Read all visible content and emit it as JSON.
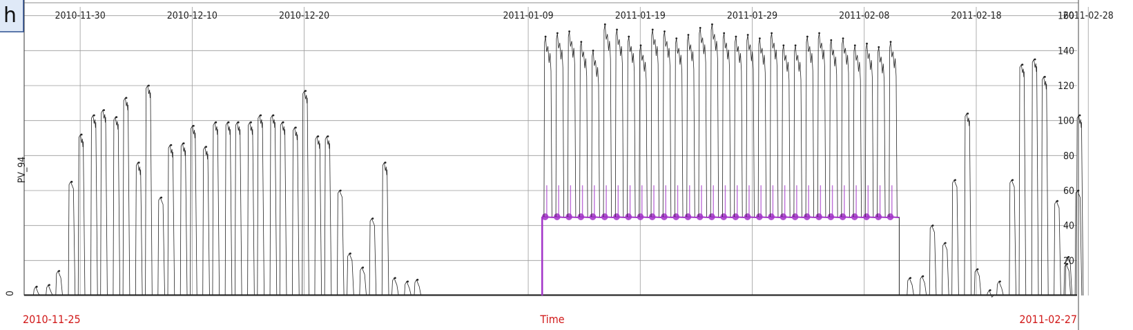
{
  "panel_letter": "h",
  "chart_data": {
    "type": "line",
    "title": "",
    "xlabel": "Time",
    "ylabel": "PV_94",
    "x_start_label": "2010-11-25",
    "x_end_label": "2011-02-27",
    "x_range": [
      "2010-11-25",
      "2011-02-27"
    ],
    "ylim": [
      0,
      165
    ],
    "y_ticks_right": [
      20,
      40,
      60,
      80,
      100,
      120,
      140,
      160
    ],
    "y_tick_left": "0",
    "x_ticks_top": [
      "2010-11-30",
      "2010-12-10",
      "2010-12-20",
      "2011-01-09",
      "2011-01-19",
      "2011-01-29",
      "2011-02-08",
      "2011-02-18",
      "2011-02-28"
    ],
    "grid": true,
    "colors": {
      "series": "#222222",
      "highlight": "#a233c8",
      "axis_label": "#d11a1a",
      "grid": "#9a9a9a"
    },
    "highlight_segment": {
      "start": "2011-01-10",
      "end": "2011-02-11",
      "baseline": 45
    },
    "series": [
      {
        "peaks": [
          {
            "date": "2010-11-26",
            "value": 5
          },
          {
            "date": "2010-11-27",
            "value": 6
          },
          {
            "date": "2010-11-28",
            "value": 14
          },
          {
            "date": "2010-11-29",
            "value": 65
          },
          {
            "date": "2010-11-30",
            "value": 92
          },
          {
            "date": "2010-12-01",
            "value": 103
          },
          {
            "date": "2010-12-02",
            "value": 106
          },
          {
            "date": "2010-12-03",
            "value": 102
          },
          {
            "date": "2010-12-04",
            "value": 113
          },
          {
            "date": "2010-12-05",
            "value": 76
          },
          {
            "date": "2010-12-06",
            "value": 120
          },
          {
            "date": "2010-12-07",
            "value": 56
          },
          {
            "date": "2010-12-08",
            "value": 86
          },
          {
            "date": "2010-12-09",
            "value": 87
          },
          {
            "date": "2010-12-10",
            "value": 97
          },
          {
            "date": "2010-12-11",
            "value": 85
          },
          {
            "date": "2010-12-12",
            "value": 99
          },
          {
            "date": "2010-12-13",
            "value": 99
          },
          {
            "date": "2010-12-14",
            "value": 99
          },
          {
            "date": "2010-12-15",
            "value": 99
          },
          {
            "date": "2010-12-16",
            "value": 103
          },
          {
            "date": "2010-12-17",
            "value": 103
          },
          {
            "date": "2010-12-18",
            "value": 99
          },
          {
            "date": "2010-12-19",
            "value": 96
          },
          {
            "date": "2010-12-20",
            "value": 117
          },
          {
            "date": "2010-12-21",
            "value": 91
          },
          {
            "date": "2010-12-22",
            "value": 91
          },
          {
            "date": "2010-12-23",
            "value": 60
          },
          {
            "date": "2010-12-24",
            "value": 24
          },
          {
            "date": "2010-12-25",
            "value": 16
          },
          {
            "date": "2010-12-26",
            "value": 44
          },
          {
            "date": "2010-12-27",
            "value": 76
          },
          {
            "date": "2010-12-28",
            "value": 10
          },
          {
            "date": "2010-12-29",
            "value": 8
          },
          {
            "date": "2010-12-30",
            "value": 9
          }
        ]
      },
      {
        "peaks": [
          {
            "date": "2011-02-12",
            "value": 10
          },
          {
            "date": "2011-02-13",
            "value": 11
          },
          {
            "date": "2011-02-14",
            "value": 40
          },
          {
            "date": "2011-02-15",
            "value": 30
          },
          {
            "date": "2011-02-16",
            "value": 66
          },
          {
            "date": "2011-02-17",
            "value": 104
          },
          {
            "date": "2011-02-18",
            "value": 15
          },
          {
            "date": "2011-02-19",
            "value": 3
          },
          {
            "date": "2011-02-20",
            "value": 8
          },
          {
            "date": "2011-02-21",
            "value": 66
          },
          {
            "date": "2011-02-22",
            "value": 132
          },
          {
            "date": "2011-02-23",
            "value": 135
          },
          {
            "date": "2011-02-24",
            "value": 125
          },
          {
            "date": "2011-02-25",
            "value": 54
          },
          {
            "date": "2011-02-26",
            "value": 18
          },
          {
            "date": "2011-02-26",
            "value": 22
          },
          {
            "date": "2011-02-27",
            "value": 60
          },
          {
            "date": "2011-02-27",
            "value": 103
          }
        ]
      }
    ],
    "high_cycles": {
      "start": "2011-01-10",
      "end": "2011-02-11",
      "peak_values": [
        148,
        150,
        151,
        145,
        140,
        155,
        152,
        148,
        143,
        152,
        151,
        147,
        149,
        153,
        155,
        150,
        148,
        149,
        147,
        150,
        143,
        143,
        148,
        150,
        146,
        147,
        143,
        144,
        142,
        145
      ]
    }
  }
}
